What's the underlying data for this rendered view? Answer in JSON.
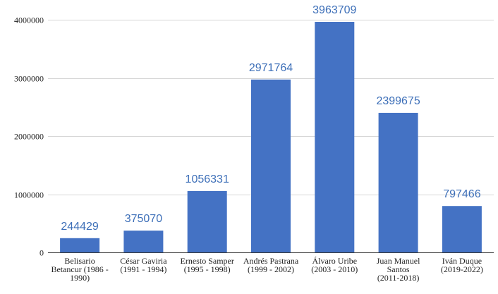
{
  "chart_data": {
    "type": "bar",
    "title": "",
    "xlabel": "",
    "ylabel": "",
    "categories": [
      [
        "Belisario",
        "Betancur (1986 -",
        "1990)"
      ],
      [
        "César Gaviria",
        "(1991 - 1994)"
      ],
      [
        "Ernesto Samper",
        "(1995 - 1998)"
      ],
      [
        "Andrés Pastrana",
        "(1999 - 2002)"
      ],
      [
        "Álvaro Uribe",
        "(2003 - 2010)"
      ],
      [
        "Juan Manuel",
        "Santos",
        "(2011-2018)"
      ],
      [
        "Iván Duque",
        "(2019-2022)"
      ]
    ],
    "values": [
      244429,
      375070,
      1056331,
      2971764,
      3963709,
      2399675,
      797466
    ],
    "data_labels": [
      "244429",
      "375070",
      "1056331",
      "2971764",
      "3963709",
      "2399675",
      "797466"
    ],
    "ylim": [
      0,
      4000000
    ],
    "yticks": [
      0,
      1000000,
      2000000,
      3000000,
      4000000
    ],
    "ytick_labels": [
      "0",
      "1000000",
      "2000000",
      "3000000",
      "4000000"
    ],
    "grid": true,
    "legend": "none",
    "bar_color": "#4472c4",
    "label_color": "#3d6fb8"
  }
}
